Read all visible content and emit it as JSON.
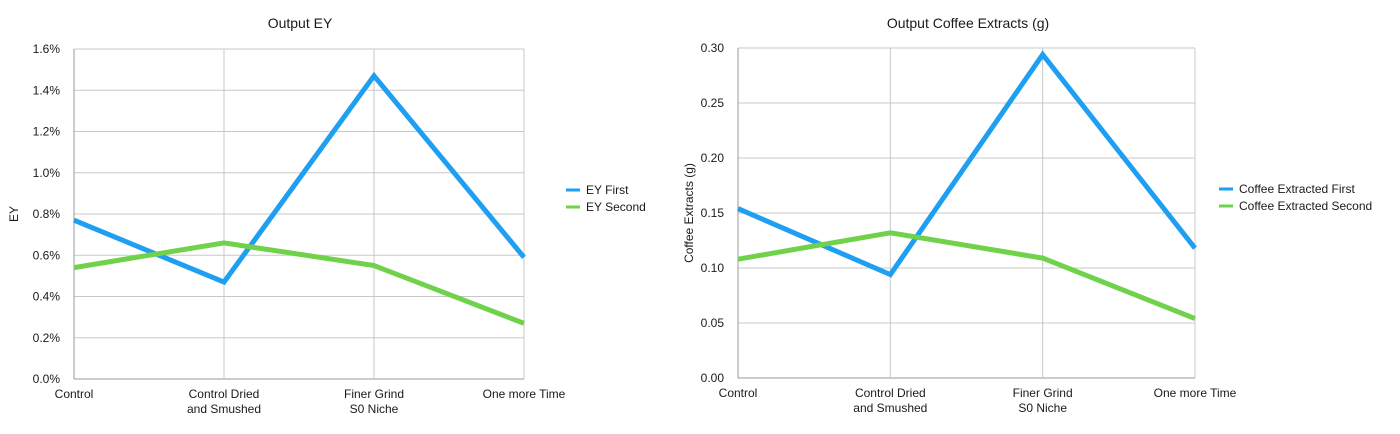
{
  "chart_data": [
    {
      "type": "line",
      "title": "Output EY",
      "xlabel": "",
      "ylabel": "EY",
      "categories": [
        [
          "Control"
        ],
        [
          "Control Dried",
          "and Smushed"
        ],
        [
          "Finer Grind",
          "S0 Niche"
        ],
        [
          "One more Time"
        ]
      ],
      "ylim": [
        0,
        0.016
      ],
      "yticks": [
        "0.0%",
        "0.2%",
        "0.4%",
        "0.6%",
        "0.8%",
        "1.0%",
        "1.2%",
        "1.4%",
        "1.6%"
      ],
      "grid": true,
      "legend_position": "right",
      "series": [
        {
          "name": "EY First",
          "color": "#1e9ff2",
          "values": [
            0.0077,
            0.0047,
            0.0147,
            0.0059
          ]
        },
        {
          "name": "EY Second",
          "color": "#6fd24a",
          "values": [
            0.0054,
            0.0066,
            0.0055,
            0.0027
          ]
        }
      ]
    },
    {
      "type": "line",
      "title": "Output Coffee Extracts (g)",
      "xlabel": "",
      "ylabel": "Coffee Extracts (g)",
      "categories": [
        [
          "Control"
        ],
        [
          "Control Dried",
          "and Smushed"
        ],
        [
          "Finer Grind",
          "S0 Niche"
        ],
        [
          "One more Time"
        ]
      ],
      "ylim": [
        0,
        0.3
      ],
      "yticks": [
        "0.00",
        "0.05",
        "0.10",
        "0.15",
        "0.20",
        "0.25",
        "0.30"
      ],
      "grid": true,
      "legend_position": "right",
      "series": [
        {
          "name": "Coffee Extracted First",
          "color": "#1e9ff2",
          "values": [
            0.154,
            0.094,
            0.294,
            0.118
          ]
        },
        {
          "name": "Coffee Extracted Second",
          "color": "#6fd24a",
          "values": [
            0.108,
            0.132,
            0.109,
            0.054
          ]
        }
      ]
    }
  ]
}
